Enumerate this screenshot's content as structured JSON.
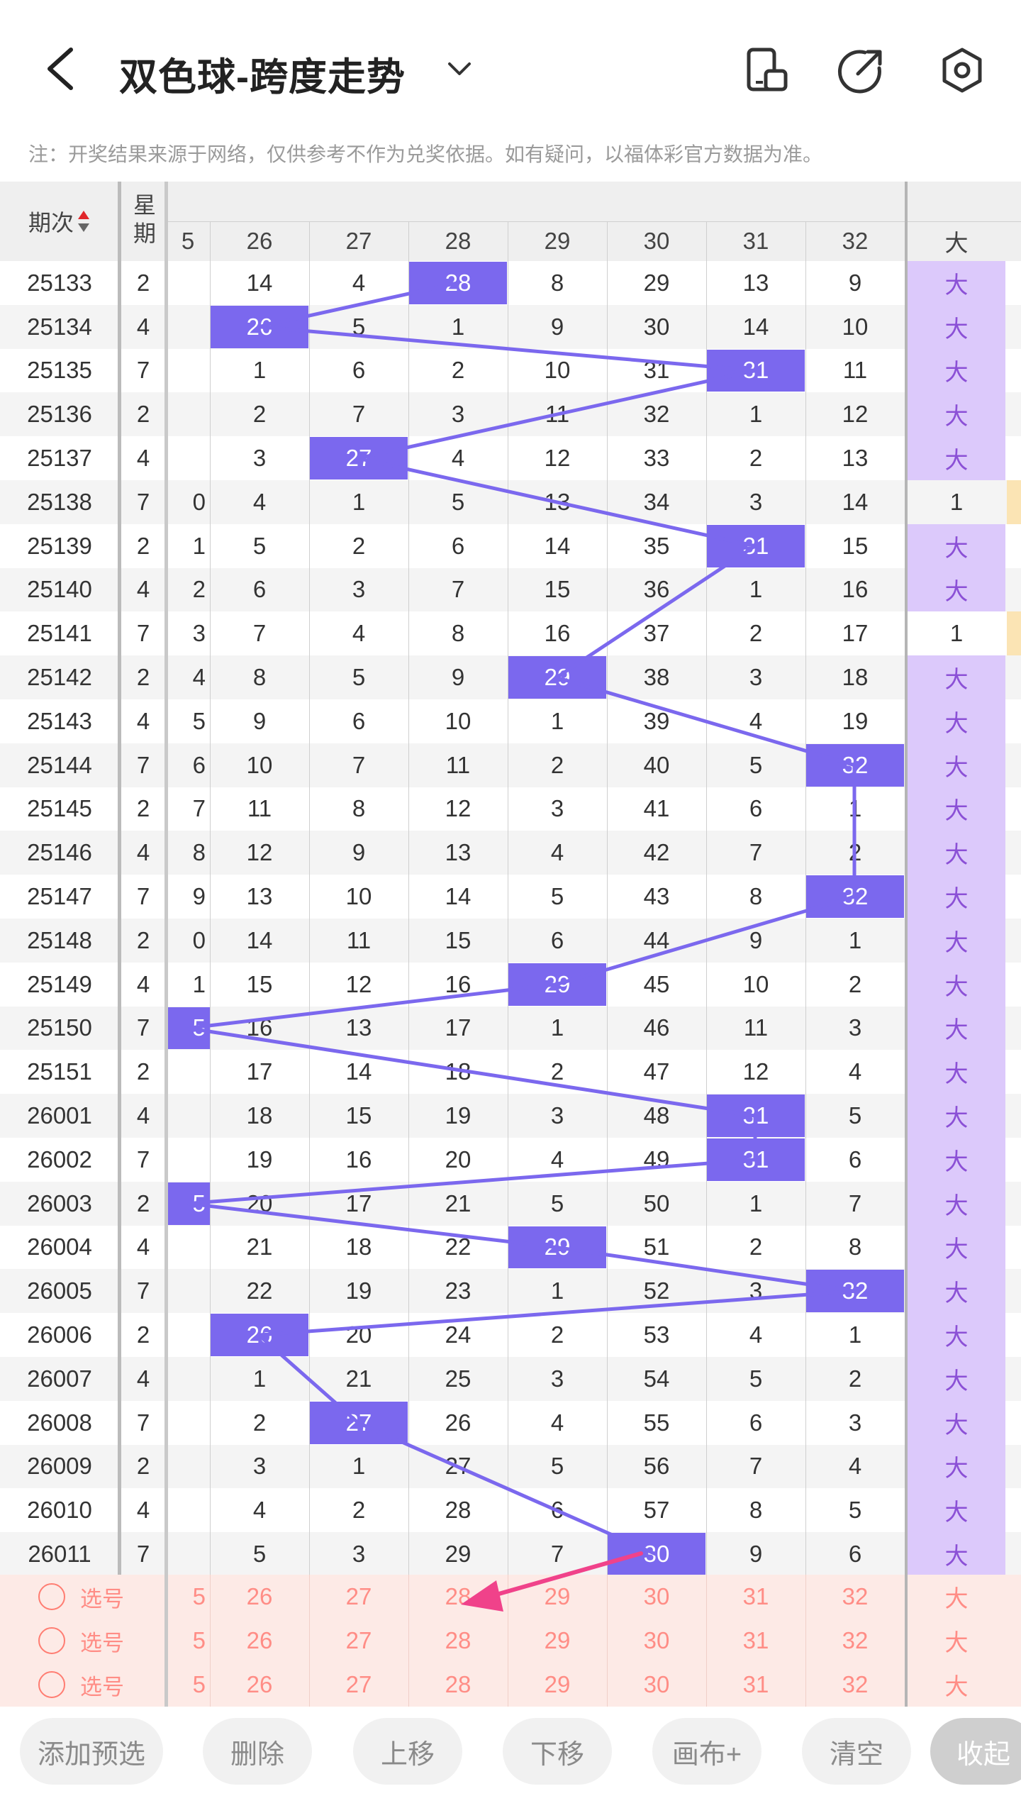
{
  "header": {
    "title": "双色球-跨度走势",
    "note": "注：开奖结果来源于网络，仅供参考不作为兑奖依据。如有疑问，以福体彩官方数据为准。"
  },
  "table": {
    "period_header": "期次",
    "weekday_header": "星期",
    "number_columns": [
      "5",
      "26",
      "27",
      "28",
      "29",
      "30",
      "31",
      "32"
    ],
    "big_header": "大",
    "rows": [
      {
        "period": "25133",
        "weekday": "2",
        "c": [
          "",
          "14",
          "4",
          "28",
          "8",
          "29",
          "13",
          "9"
        ],
        "hit": 3,
        "big": "大"
      },
      {
        "period": "25134",
        "weekday": "4",
        "c": [
          "",
          "26",
          "5",
          "1",
          "9",
          "30",
          "14",
          "10"
        ],
        "hit": 1,
        "big": "大"
      },
      {
        "period": "25135",
        "weekday": "7",
        "c": [
          "",
          "1",
          "6",
          "2",
          "10",
          "31",
          "31",
          "11"
        ],
        "hit": 6,
        "big": "大"
      },
      {
        "period": "25136",
        "weekday": "2",
        "c": [
          "",
          "2",
          "7",
          "3",
          "11",
          "32",
          "1",
          "12"
        ],
        "hit": -1,
        "big": "大"
      },
      {
        "period": "25137",
        "weekday": "4",
        "c": [
          "",
          "3",
          "27",
          "4",
          "12",
          "33",
          "2",
          "13"
        ],
        "hit": 2,
        "big": "大"
      },
      {
        "period": "25138",
        "weekday": "7",
        "c": [
          "0",
          "4",
          "1",
          "5",
          "13",
          "34",
          "3",
          "14"
        ],
        "hit": -1,
        "big": "1"
      },
      {
        "period": "25139",
        "weekday": "2",
        "c": [
          "1",
          "5",
          "2",
          "6",
          "14",
          "35",
          "31",
          "15"
        ],
        "hit": 6,
        "big": "大"
      },
      {
        "period": "25140",
        "weekday": "4",
        "c": [
          "2",
          "6",
          "3",
          "7",
          "15",
          "36",
          "1",
          "16"
        ],
        "hit": -1,
        "big": "大"
      },
      {
        "period": "25141",
        "weekday": "7",
        "c": [
          "3",
          "7",
          "4",
          "8",
          "16",
          "37",
          "2",
          "17"
        ],
        "hit": -1,
        "big": "1"
      },
      {
        "period": "25142",
        "weekday": "2",
        "c": [
          "4",
          "8",
          "5",
          "9",
          "29",
          "38",
          "3",
          "18"
        ],
        "hit": 4,
        "big": "大"
      },
      {
        "period": "25143",
        "weekday": "4",
        "c": [
          "5",
          "9",
          "6",
          "10",
          "1",
          "39",
          "4",
          "19"
        ],
        "hit": -1,
        "big": "大"
      },
      {
        "period": "25144",
        "weekday": "7",
        "c": [
          "6",
          "10",
          "7",
          "11",
          "2",
          "40",
          "5",
          "32"
        ],
        "hit": 7,
        "big": "大"
      },
      {
        "period": "25145",
        "weekday": "2",
        "c": [
          "7",
          "11",
          "8",
          "12",
          "3",
          "41",
          "6",
          "1"
        ],
        "hit": -1,
        "big": "大"
      },
      {
        "period": "25146",
        "weekday": "4",
        "c": [
          "8",
          "12",
          "9",
          "13",
          "4",
          "42",
          "7",
          "2"
        ],
        "hit": -1,
        "big": "大"
      },
      {
        "period": "25147",
        "weekday": "7",
        "c": [
          "9",
          "13",
          "10",
          "14",
          "5",
          "43",
          "8",
          "32"
        ],
        "hit": 7,
        "big": "大"
      },
      {
        "period": "25148",
        "weekday": "2",
        "c": [
          "0",
          "14",
          "11",
          "15",
          "6",
          "44",
          "9",
          "1"
        ],
        "hit": -1,
        "big": "大"
      },
      {
        "period": "25149",
        "weekday": "4",
        "c": [
          "1",
          "15",
          "12",
          "16",
          "29",
          "45",
          "10",
          "2"
        ],
        "hit": 4,
        "big": "大"
      },
      {
        "period": "25150",
        "weekday": "7",
        "c": [
          "5",
          "16",
          "13",
          "17",
          "1",
          "46",
          "11",
          "3"
        ],
        "hit": 0,
        "big": "大"
      },
      {
        "period": "25151",
        "weekday": "2",
        "c": [
          "",
          "17",
          "14",
          "18",
          "2",
          "47",
          "12",
          "4"
        ],
        "hit": -1,
        "big": "大"
      },
      {
        "period": "26001",
        "weekday": "4",
        "c": [
          "",
          "18",
          "15",
          "19",
          "3",
          "48",
          "31",
          "5"
        ],
        "hit": 6,
        "big": "大"
      },
      {
        "period": "26002",
        "weekday": "7",
        "c": [
          "",
          "19",
          "16",
          "20",
          "4",
          "49",
          "31",
          "6"
        ],
        "hit": 6,
        "big": "大"
      },
      {
        "period": "26003",
        "weekday": "2",
        "c": [
          "5",
          "20",
          "17",
          "21",
          "5",
          "50",
          "1",
          "7"
        ],
        "hit": 0,
        "big": "大"
      },
      {
        "period": "26004",
        "weekday": "4",
        "c": [
          "",
          "21",
          "18",
          "22",
          "29",
          "51",
          "2",
          "8"
        ],
        "hit": 4,
        "big": "大"
      },
      {
        "period": "26005",
        "weekday": "7",
        "c": [
          "",
          "22",
          "19",
          "23",
          "1",
          "52",
          "3",
          "32"
        ],
        "hit": 7,
        "big": "大"
      },
      {
        "period": "26006",
        "weekday": "2",
        "c": [
          "",
          "26",
          "20",
          "24",
          "2",
          "53",
          "4",
          "1"
        ],
        "hit": 1,
        "big": "大"
      },
      {
        "period": "26007",
        "weekday": "4",
        "c": [
          "",
          "1",
          "21",
          "25",
          "3",
          "54",
          "5",
          "2"
        ],
        "hit": -1,
        "big": "大"
      },
      {
        "period": "26008",
        "weekday": "7",
        "c": [
          "",
          "2",
          "27",
          "26",
          "4",
          "55",
          "6",
          "3"
        ],
        "hit": 2,
        "big": "大"
      },
      {
        "period": "26009",
        "weekday": "2",
        "c": [
          "",
          "3",
          "1",
          "27",
          "5",
          "56",
          "7",
          "4"
        ],
        "hit": -1,
        "big": "大"
      },
      {
        "period": "26010",
        "weekday": "4",
        "c": [
          "",
          "4",
          "2",
          "28",
          "6",
          "57",
          "8",
          "5"
        ],
        "hit": -1,
        "big": "大"
      },
      {
        "period": "26011",
        "weekday": "7",
        "c": [
          "",
          "5",
          "3",
          "29",
          "7",
          "30",
          "9",
          "6"
        ],
        "hit": 5,
        "big": "大"
      }
    ]
  },
  "predict": {
    "label": "选号",
    "numbers": [
      "5",
      "26",
      "27",
      "28",
      "29",
      "30",
      "31",
      "32"
    ],
    "big": "大"
  },
  "buttons": {
    "add": "添加预选",
    "delete": "删除",
    "up": "上移",
    "down": "下移",
    "canvas": "画布+",
    "clear": "清空",
    "collapse": "收起"
  },
  "colors": {
    "highlight": "#7b68ee",
    "big_column": "#dcc9fb",
    "predict_bg": "#fdeae6",
    "arrow": "#f0428a"
  }
}
